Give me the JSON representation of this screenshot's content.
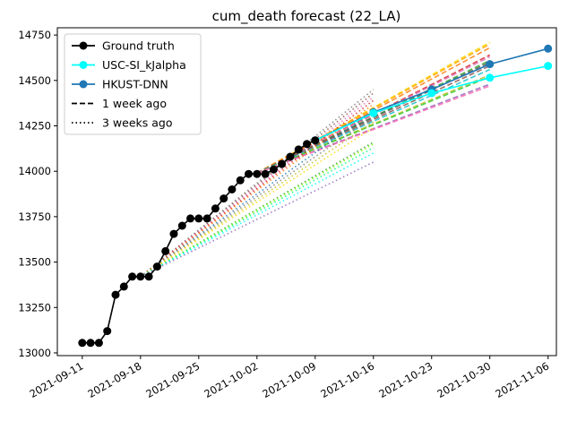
{
  "chart_data": {
    "type": "line",
    "title": "cum_death forecast (22_LA)",
    "xlabel": "",
    "ylabel": "",
    "x_ticks": [
      "2021-09-11",
      "2021-09-18",
      "2021-09-25",
      "2021-10-02",
      "2021-10-09",
      "2021-10-16",
      "2021-10-23",
      "2021-10-30",
      "2021-11-06"
    ],
    "y_ticks": [
      13000,
      13250,
      13500,
      13750,
      14000,
      14250,
      14500,
      14750
    ],
    "xlim": [
      "2021-09-08",
      "2021-11-07"
    ],
    "ylim": [
      12985,
      14790
    ],
    "grid": false,
    "legend_position": "top-left",
    "legend": [
      {
        "label": "Ground truth",
        "style": "solid-marker",
        "color": "#000000"
      },
      {
        "label": "USC-SI_kJalpha",
        "style": "solid-marker",
        "color": "#00ffff"
      },
      {
        "label": "HKUST-DNN",
        "style": "solid-marker",
        "color": "#1f77b4"
      },
      {
        "label": "1 week ago",
        "style": "dashed",
        "color": "#000000"
      },
      {
        "label": "3 weeks ago",
        "style": "dotted",
        "color": "#000000"
      }
    ],
    "series": [
      {
        "name": "Ground truth",
        "color": "#000000",
        "style": "solid",
        "marker": true,
        "points": [
          [
            "2021-09-11",
            13055
          ],
          [
            "2021-09-12",
            13055
          ],
          [
            "2021-09-13",
            13055
          ],
          [
            "2021-09-14",
            13120
          ],
          [
            "2021-09-15",
            13320
          ],
          [
            "2021-09-16",
            13365
          ],
          [
            "2021-09-17",
            13420
          ],
          [
            "2021-09-18",
            13420
          ],
          [
            "2021-09-19",
            13420
          ],
          [
            "2021-09-20",
            13475
          ],
          [
            "2021-09-21",
            13560
          ],
          [
            "2021-09-22",
            13655
          ],
          [
            "2021-09-23",
            13700
          ],
          [
            "2021-09-24",
            13740
          ],
          [
            "2021-09-25",
            13740
          ],
          [
            "2021-09-26",
            13740
          ],
          [
            "2021-09-27",
            13795
          ],
          [
            "2021-09-28",
            13850
          ],
          [
            "2021-09-29",
            13900
          ],
          [
            "2021-09-30",
            13950
          ],
          [
            "2021-10-01",
            13985
          ],
          [
            "2021-10-02",
            13985
          ],
          [
            "2021-10-03",
            13985
          ],
          [
            "2021-10-04",
            14010
          ],
          [
            "2021-10-05",
            14040
          ],
          [
            "2021-10-06",
            14080
          ],
          [
            "2021-10-07",
            14120
          ],
          [
            "2021-10-08",
            14150
          ],
          [
            "2021-10-09",
            14170
          ]
        ]
      },
      {
        "name": "USC-SI_kJalpha",
        "color": "#00ffff",
        "style": "solid",
        "marker": true,
        "points": [
          [
            "2021-10-09",
            14170
          ],
          [
            "2021-10-16",
            14320
          ],
          [
            "2021-10-23",
            14430
          ],
          [
            "2021-10-30",
            14515
          ],
          [
            "2021-11-06",
            14580
          ]
        ]
      },
      {
        "name": "HKUST-DNN",
        "color": "#1f77b4",
        "style": "solid",
        "marker": true,
        "points": [
          [
            "2021-10-09",
            14170
          ],
          [
            "2021-10-16",
            14325
          ],
          [
            "2021-10-23",
            14450
          ],
          [
            "2021-10-30",
            14590
          ],
          [
            "2021-11-06",
            14675
          ]
        ]
      }
    ],
    "forecast_lines": [
      {
        "color": "#ffd700",
        "style": "dashed",
        "points": [
          [
            "2021-10-02",
            13990
          ],
          [
            "2021-10-30",
            14710
          ]
        ]
      },
      {
        "color": "#ffa500",
        "style": "dashed",
        "points": [
          [
            "2021-10-02",
            13990
          ],
          [
            "2021-10-30",
            14700
          ]
        ]
      },
      {
        "color": "#ff7f0e",
        "style": "dashed",
        "points": [
          [
            "2021-10-02",
            13990
          ],
          [
            "2021-10-30",
            14680
          ]
        ]
      },
      {
        "color": "#d62728",
        "style": "dashed",
        "points": [
          [
            "2021-10-02",
            13990
          ],
          [
            "2021-10-30",
            14640
          ]
        ]
      },
      {
        "color": "#e377c2",
        "style": "dashed",
        "points": [
          [
            "2021-10-02",
            13990
          ],
          [
            "2021-10-30",
            14630
          ]
        ]
      },
      {
        "color": "#2ca02c",
        "style": "dashed",
        "points": [
          [
            "2021-10-02",
            13990
          ],
          [
            "2021-10-30",
            14610
          ]
        ]
      },
      {
        "color": "#555555",
        "style": "dashed",
        "points": [
          [
            "2021-10-02",
            13990
          ],
          [
            "2021-10-30",
            14600
          ]
        ]
      },
      {
        "color": "#8c564b",
        "style": "dashed",
        "points": [
          [
            "2021-10-02",
            13990
          ],
          [
            "2021-10-30",
            14580
          ]
        ]
      },
      {
        "color": "#17becf",
        "style": "dashed",
        "points": [
          [
            "2021-10-02",
            13990
          ],
          [
            "2021-10-30",
            14560
          ]
        ]
      },
      {
        "color": "#bcbd22",
        "style": "dashed",
        "points": [
          [
            "2021-10-02",
            13990
          ],
          [
            "2021-10-30",
            14530
          ]
        ]
      },
      {
        "color": "#32cd32",
        "style": "dashed",
        "points": [
          [
            "2021-10-02",
            13990
          ],
          [
            "2021-10-30",
            14520
          ]
        ]
      },
      {
        "color": "#9467bd",
        "style": "dashed",
        "points": [
          [
            "2021-10-02",
            13990
          ],
          [
            "2021-10-30",
            14480
          ]
        ]
      },
      {
        "color": "#ff69b4",
        "style": "dashed",
        "points": [
          [
            "2021-10-02",
            13990
          ],
          [
            "2021-10-30",
            14470
          ]
        ]
      },
      {
        "color": "#7f7f7f",
        "style": "dotted",
        "points": [
          [
            "2021-09-18",
            13420
          ],
          [
            "2021-10-16",
            14450
          ]
        ]
      },
      {
        "color": "#8c564b",
        "style": "dotted",
        "points": [
          [
            "2021-09-18",
            13420
          ],
          [
            "2021-10-16",
            14430
          ]
        ]
      },
      {
        "color": "#e377c2",
        "style": "dotted",
        "points": [
          [
            "2021-09-18",
            13420
          ],
          [
            "2021-10-16",
            14410
          ]
        ]
      },
      {
        "color": "#d62728",
        "style": "dotted",
        "points": [
          [
            "2021-09-18",
            13420
          ],
          [
            "2021-10-16",
            14390
          ]
        ]
      },
      {
        "color": "#ff7f0e",
        "style": "dotted",
        "points": [
          [
            "2021-09-18",
            13420
          ],
          [
            "2021-10-16",
            14370
          ]
        ]
      },
      {
        "color": "#1f77b4",
        "style": "dotted",
        "points": [
          [
            "2021-09-18",
            13420
          ],
          [
            "2021-10-16",
            14330
          ]
        ]
      },
      {
        "color": "#7f7f7f",
        "style": "dotted",
        "points": [
          [
            "2021-09-18",
            13420
          ],
          [
            "2021-10-16",
            14300
          ]
        ]
      },
      {
        "color": "#bcbd22",
        "style": "dotted",
        "points": [
          [
            "2021-09-18",
            13420
          ],
          [
            "2021-10-16",
            14270
          ]
        ]
      },
      {
        "color": "#ffd700",
        "style": "dotted",
        "points": [
          [
            "2021-09-18",
            13420
          ],
          [
            "2021-10-16",
            14240
          ]
        ]
      },
      {
        "color": "#2ca02c",
        "style": "dotted",
        "points": [
          [
            "2021-09-18",
            13420
          ],
          [
            "2021-10-16",
            14160
          ]
        ]
      },
      {
        "color": "#7fff00",
        "style": "dotted",
        "points": [
          [
            "2021-09-18",
            13420
          ],
          [
            "2021-10-16",
            14150
          ]
        ]
      },
      {
        "color": "#00ff7f",
        "style": "dotted",
        "points": [
          [
            "2021-09-18",
            13420
          ],
          [
            "2021-10-16",
            14130
          ]
        ]
      },
      {
        "color": "#00ffff",
        "style": "dotted",
        "points": [
          [
            "2021-09-18",
            13420
          ],
          [
            "2021-10-16",
            14100
          ]
        ]
      },
      {
        "color": "#9467bd",
        "style": "dotted",
        "points": [
          [
            "2021-09-18",
            13420
          ],
          [
            "2021-10-16",
            14050
          ]
        ]
      }
    ]
  }
}
